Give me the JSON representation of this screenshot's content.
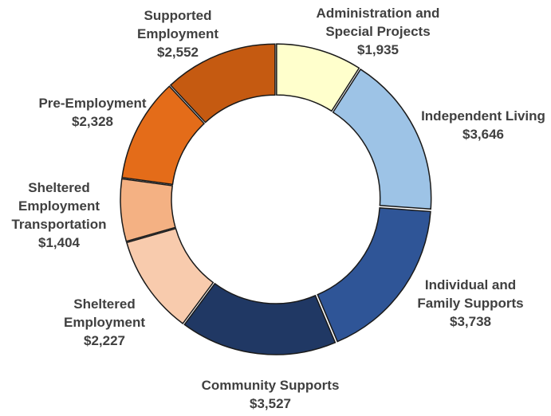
{
  "chart_data": {
    "type": "pie",
    "variant": "donut",
    "title": "",
    "slices": [
      {
        "label": [
          "Administration and",
          "Special Projects"
        ],
        "value_label": "$1,935",
        "value": 1935,
        "color": "#FFFFCC"
      },
      {
        "label": [
          "Independent Living"
        ],
        "value_label": "$3,646",
        "value": 3646,
        "color": "#9DC3E6"
      },
      {
        "label": [
          "Individual and",
          "Family Supports"
        ],
        "value_label": "$3,738",
        "value": 3738,
        "color": "#2F5597"
      },
      {
        "label": [
          "Community Supports"
        ],
        "value_label": "$3,527",
        "value": 3527,
        "color": "#203864"
      },
      {
        "label": [
          "Sheltered",
          "Employment"
        ],
        "value_label": "$2,227",
        "value": 2227,
        "color": "#F8CBAD"
      },
      {
        "label": [
          "Sheltered",
          "Employment",
          "Transportation"
        ],
        "value_label": "$1,404",
        "value": 1404,
        "color": "#F4B183"
      },
      {
        "label": [
          "Pre-Employment"
        ],
        "value_label": "$2,328",
        "value": 2328,
        "color": "#E46C19"
      },
      {
        "label": [
          "Supported",
          "Employment"
        ],
        "value_label": "$2,552",
        "value": 2552,
        "color": "#C55A11"
      }
    ]
  }
}
